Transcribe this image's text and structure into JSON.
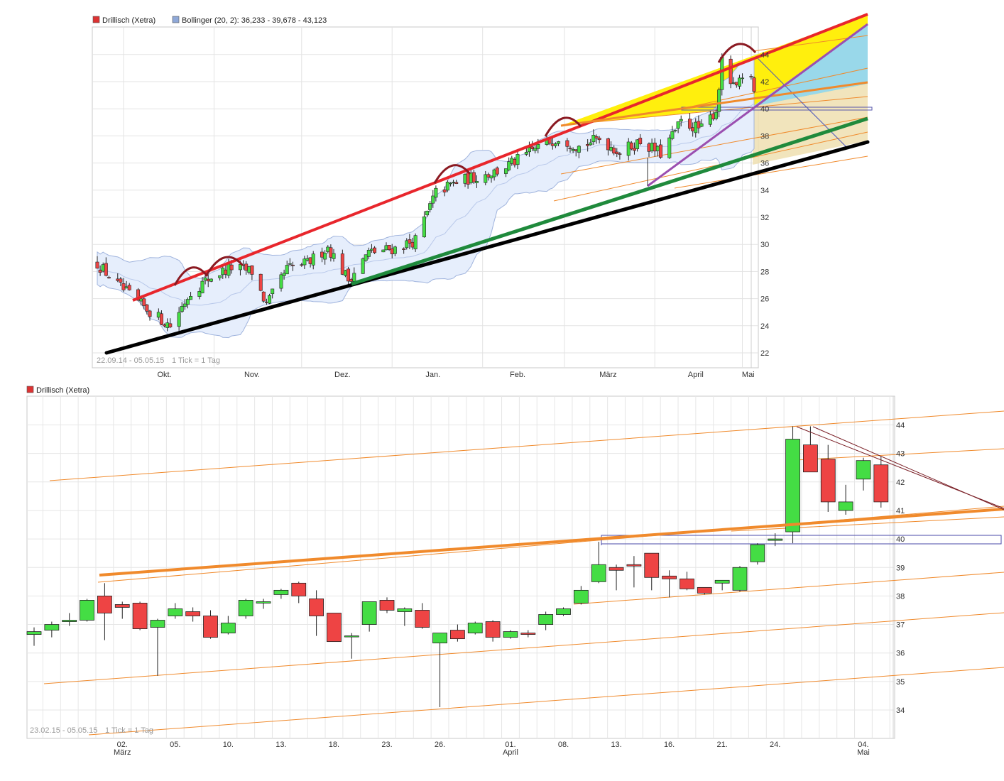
{
  "chart_data": [
    {
      "type": "candlestick",
      "legend": [
        {
          "label": "Drillisch (Xetra)",
          "color": "#dd3333"
        },
        {
          "label": "Bollinger (20, 2): 36,233 - 39,678 - 43,123",
          "color": "#8fa8d8"
        }
      ],
      "range_label": "22.09.14 - 05.05.15",
      "tick_label": "1 Tick = 1 Tag",
      "x_labels": [
        "Okt.",
        "Nov.",
        "Dez.",
        "Jan.",
        "Feb.",
        "März",
        "April",
        "Mai"
      ],
      "y_ticks": [
        "22",
        "24",
        "26",
        "28",
        "30",
        "32",
        "34",
        "36",
        "38",
        "40",
        "42",
        "44"
      ],
      "ylim": [
        21,
        45
      ],
      "close_path": [
        [
          "2014-09-22",
          28.6
        ],
        [
          "2014-09-29",
          27.0
        ],
        [
          "2014-10-06",
          25.7
        ],
        [
          "2014-10-13",
          24.6
        ],
        [
          "2014-10-17",
          24.0
        ],
        [
          "2014-10-24",
          26.5
        ],
        [
          "2014-10-31",
          27.6
        ],
        [
          "2014-11-07",
          28.3
        ],
        [
          "2014-11-14",
          28.0
        ],
        [
          "2014-11-19",
          25.5
        ],
        [
          "2014-11-26",
          28.2
        ],
        [
          "2014-12-03",
          28.6
        ],
        [
          "2014-12-10",
          29.8
        ],
        [
          "2014-12-17",
          27.4
        ],
        [
          "2014-12-24",
          29.4
        ],
        [
          "2015-01-02",
          29.7
        ],
        [
          "2015-01-09",
          30.3
        ],
        [
          "2015-01-16",
          33.8
        ],
        [
          "2015-01-23",
          34.6
        ],
        [
          "2015-01-30",
          35.0
        ],
        [
          "2015-02-06",
          35.4
        ],
        [
          "2015-02-13",
          36.2
        ],
        [
          "2015-02-20",
          37.2
        ],
        [
          "2015-02-27",
          37.9
        ],
        [
          "2015-03-06",
          37.2
        ],
        [
          "2015-03-13",
          37.8
        ],
        [
          "2015-03-20",
          36.8
        ],
        [
          "2015-03-27",
          37.6
        ],
        [
          "2015-04-03",
          36.7
        ],
        [
          "2015-04-10",
          39.0
        ],
        [
          "2015-04-17",
          38.5
        ],
        [
          "2015-04-22",
          39.9
        ],
        [
          "2015-04-24",
          43.4
        ],
        [
          "2015-04-28",
          41.5
        ],
        [
          "2015-05-04",
          42.5
        ],
        [
          "2015-05-05",
          41.2
        ]
      ],
      "bollinger": {
        "lower": 36.233,
        "middle": 39.678,
        "upper": 43.123
      }
    },
    {
      "type": "candlestick",
      "legend": [
        {
          "label": "Drillisch (Xetra)",
          "color": "#dd3333"
        }
      ],
      "range_label": "23.02.15 - 05.05.15",
      "tick_label": "1 Tick = 1 Tag",
      "x_labels": [
        {
          "day": "02.",
          "month": "März"
        },
        {
          "day": "05.",
          "month": ""
        },
        {
          "day": "10.",
          "month": ""
        },
        {
          "day": "13.",
          "month": ""
        },
        {
          "day": "18.",
          "month": ""
        },
        {
          "day": "23.",
          "month": ""
        },
        {
          "day": "26.",
          "month": ""
        },
        {
          "day": "01.",
          "month": "April"
        },
        {
          "day": "08.",
          "month": ""
        },
        {
          "day": "13.",
          "month": ""
        },
        {
          "day": "16.",
          "month": ""
        },
        {
          "day": "21.",
          "month": ""
        },
        {
          "day": "24.",
          "month": ""
        },
        {
          "day": "04.",
          "month": "Mai"
        }
      ],
      "y_ticks": [
        "34",
        "35",
        "36",
        "37",
        "38",
        "39",
        "40",
        "41",
        "42",
        "43",
        "44"
      ],
      "ylim": [
        33.05,
        44.9
      ],
      "candles": [
        {
          "date": "2015-02-23",
          "o": 36.65,
          "h": 36.9,
          "l": 36.25,
          "c": 36.75
        },
        {
          "date": "2015-02-24",
          "o": 36.8,
          "h": 37.1,
          "l": 36.55,
          "c": 37.0
        },
        {
          "date": "2015-02-25",
          "o": 37.1,
          "h": 37.4,
          "l": 36.95,
          "c": 37.15
        },
        {
          "date": "2015-02-26",
          "o": 37.15,
          "h": 37.9,
          "l": 37.1,
          "c": 37.85
        },
        {
          "date": "2015-02-27",
          "o": 38.0,
          "h": 38.45,
          "l": 36.45,
          "c": 37.4
        },
        {
          "date": "2015-03-02",
          "o": 37.7,
          "h": 37.8,
          "l": 37.2,
          "c": 37.6
        },
        {
          "date": "2015-03-03",
          "o": 37.75,
          "h": 37.8,
          "l": 36.8,
          "c": 36.85
        },
        {
          "date": "2015-03-04",
          "o": 36.9,
          "h": 37.2,
          "l": 35.2,
          "c": 37.15
        },
        {
          "date": "2015-03-05",
          "o": 37.3,
          "h": 37.75,
          "l": 37.2,
          "c": 37.55
        },
        {
          "date": "2015-03-06",
          "o": 37.45,
          "h": 37.6,
          "l": 37.1,
          "c": 37.3
        },
        {
          "date": "2015-03-09",
          "o": 37.3,
          "h": 37.5,
          "l": 36.5,
          "c": 36.55
        },
        {
          "date": "2015-03-10",
          "o": 36.7,
          "h": 37.3,
          "l": 36.65,
          "c": 37.05
        },
        {
          "date": "2015-03-11",
          "o": 37.3,
          "h": 37.9,
          "l": 37.2,
          "c": 37.85
        },
        {
          "date": "2015-03-12",
          "o": 37.75,
          "h": 37.9,
          "l": 37.55,
          "c": 37.8
        },
        {
          "date": "2015-03-13",
          "o": 38.05,
          "h": 38.25,
          "l": 37.9,
          "c": 38.2
        },
        {
          "date": "2015-03-16",
          "o": 38.45,
          "h": 38.5,
          "l": 37.75,
          "c": 38.0
        },
        {
          "date": "2015-03-17",
          "o": 37.9,
          "h": 38.2,
          "l": 36.6,
          "c": 37.3
        },
        {
          "date": "2015-03-18",
          "o": 37.4,
          "h": 37.4,
          "l": 36.4,
          "c": 36.4
        },
        {
          "date": "2015-03-19",
          "o": 36.6,
          "h": 36.7,
          "l": 35.8,
          "c": 36.6
        },
        {
          "date": "2015-03-20",
          "o": 37.0,
          "h": 37.8,
          "l": 36.75,
          "c": 37.8
        },
        {
          "date": "2015-03-23",
          "o": 37.85,
          "h": 37.95,
          "l": 37.4,
          "c": 37.5
        },
        {
          "date": "2015-03-24",
          "o": 37.45,
          "h": 37.6,
          "l": 36.95,
          "c": 37.55
        },
        {
          "date": "2015-03-25",
          "o": 37.5,
          "h": 37.75,
          "l": 36.85,
          "c": 36.9
        },
        {
          "date": "2015-03-26",
          "o": 36.35,
          "h": 36.7,
          "l": 34.1,
          "c": 36.7
        },
        {
          "date": "2015-03-27",
          "o": 36.8,
          "h": 37.0,
          "l": 36.4,
          "c": 36.5
        },
        {
          "date": "2015-03-30",
          "o": 36.7,
          "h": 37.1,
          "l": 36.65,
          "c": 37.05
        },
        {
          "date": "2015-03-31",
          "o": 37.1,
          "h": 37.15,
          "l": 36.4,
          "c": 36.55
        },
        {
          "date": "2015-04-01",
          "o": 36.55,
          "h": 36.8,
          "l": 36.5,
          "c": 36.75
        },
        {
          "date": "2015-04-02",
          "o": 36.7,
          "h": 36.8,
          "l": 36.55,
          "c": 36.65
        },
        {
          "date": "2015-04-07",
          "o": 37.0,
          "h": 37.45,
          "l": 36.8,
          "c": 37.35
        },
        {
          "date": "2015-04-08",
          "o": 37.35,
          "h": 37.6,
          "l": 37.3,
          "c": 37.55
        },
        {
          "date": "2015-04-09",
          "o": 37.75,
          "h": 38.35,
          "l": 37.7,
          "c": 38.2
        },
        {
          "date": "2015-04-10",
          "o": 38.5,
          "h": 39.9,
          "l": 38.45,
          "c": 39.1
        },
        {
          "date": "2015-04-13",
          "o": 39.0,
          "h": 39.1,
          "l": 38.2,
          "c": 38.9
        },
        {
          "date": "2015-04-14",
          "o": 39.1,
          "h": 39.4,
          "l": 38.3,
          "c": 39.05
        },
        {
          "date": "2015-04-15",
          "o": 39.5,
          "h": 39.5,
          "l": 38.2,
          "c": 38.65
        },
        {
          "date": "2015-04-16",
          "o": 38.7,
          "h": 38.9,
          "l": 37.95,
          "c": 38.6
        },
        {
          "date": "2015-04-17",
          "o": 38.6,
          "h": 38.85,
          "l": 38.2,
          "c": 38.25
        },
        {
          "date": "2015-04-20",
          "o": 38.3,
          "h": 38.3,
          "l": 38.05,
          "c": 38.1
        },
        {
          "date": "2015-04-21",
          "o": 38.45,
          "h": 38.55,
          "l": 38.2,
          "c": 38.55
        },
        {
          "date": "2015-04-22",
          "o": 38.2,
          "h": 39.05,
          "l": 38.15,
          "c": 39.0
        },
        {
          "date": "2015-04-23",
          "o": 39.2,
          "h": 39.85,
          "l": 39.1,
          "c": 39.8
        },
        {
          "date": "2015-04-24",
          "o": 39.95,
          "h": 40.2,
          "l": 39.75,
          "c": 40.0
        },
        {
          "date": "2015-04-27",
          "o": 40.25,
          "h": 43.95,
          "l": 39.85,
          "c": 43.5
        },
        {
          "date": "2015-04-28",
          "o": 43.3,
          "h": 43.95,
          "l": 42.35,
          "c": 42.35
        },
        {
          "date": "2015-04-29",
          "o": 42.8,
          "h": 43.3,
          "l": 40.95,
          "c": 41.3
        },
        {
          "date": "2015-04-30",
          "o": 41.0,
          "h": 41.9,
          "l": 40.85,
          "c": 41.3
        },
        {
          "date": "2015-05-04",
          "o": 42.1,
          "h": 42.85,
          "l": 41.7,
          "c": 42.75
        },
        {
          "date": "2015-05-05",
          "o": 42.6,
          "h": 42.9,
          "l": 41.1,
          "c": 41.3
        }
      ]
    }
  ]
}
